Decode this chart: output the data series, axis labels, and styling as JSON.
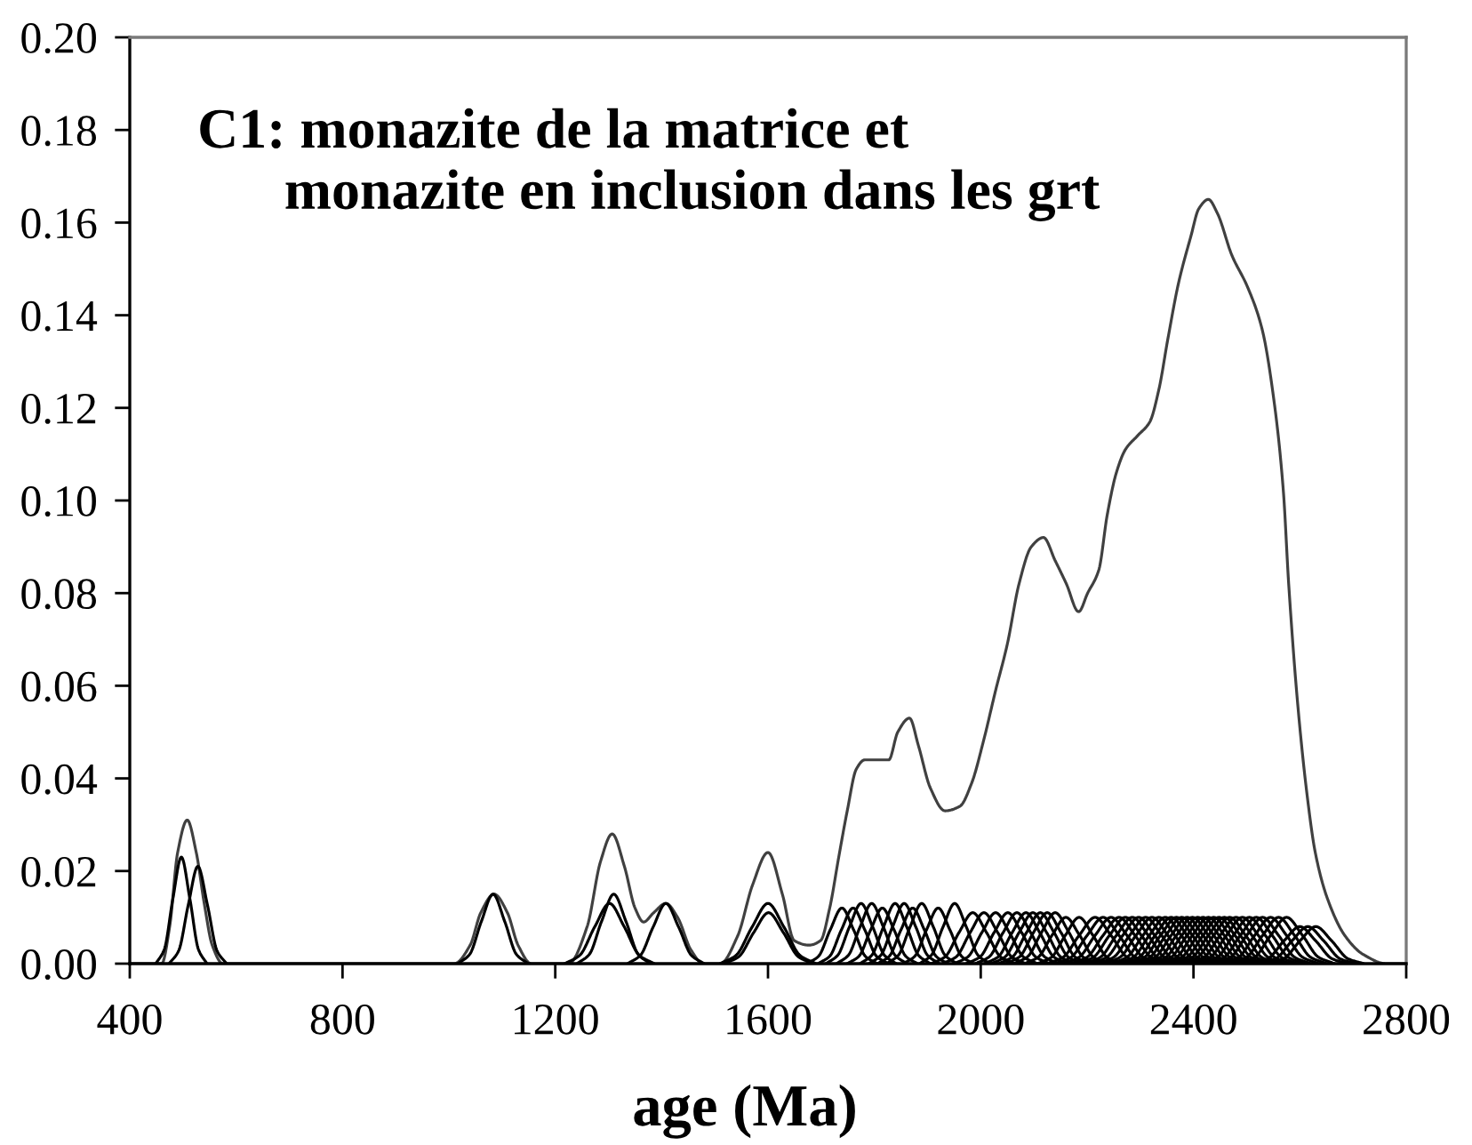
{
  "chart_data": {
    "type": "line",
    "title": "C1: monazite de la matrice et\nmonazite en inclusion dans les grt",
    "xlabel": "age (Ma)",
    "xlim": [
      400,
      2800
    ],
    "ylim": [
      0,
      0.2
    ],
    "xticks": [
      400,
      800,
      1200,
      1600,
      2000,
      2400,
      2800
    ],
    "yticks": [
      {
        "value": 0,
        "label": "0.00"
      },
      {
        "value": 0.02,
        "label": "0.02"
      },
      {
        "value": 0.04,
        "label": "0.04"
      },
      {
        "value": 0.06,
        "label": "0.06"
      },
      {
        "value": 0.08,
        "label": "0.08"
      },
      {
        "value": 0.1,
        "label": "0.10"
      },
      {
        "value": 0.12,
        "label": "0.12"
      },
      {
        "value": 0.14,
        "label": "0.14"
      },
      {
        "value": 0.16,
        "label": "0.16"
      },
      {
        "value": 0.18,
        "label": "0.18"
      },
      {
        "value": 0.2,
        "label": "0.20"
      }
    ],
    "series": [
      {
        "color": "#404040",
        "x": [
          400,
          460,
          475,
          490,
          508,
          525,
          540,
          555,
          575,
          1010,
          1040,
          1060,
          1085,
          1110,
          1130,
          1155,
          1225,
          1260,
          1285,
          1307,
          1330,
          1350,
          1366,
          1385,
          1408,
          1430,
          1455,
          1478,
          1510,
          1543,
          1571,
          1600,
          1627,
          1649,
          1677,
          1699,
          1716,
          1733,
          1749,
          1766,
          1782,
          1810,
          1827,
          1844,
          1866,
          1883,
          1905,
          1933,
          1961,
          1983,
          2005,
          2028,
          2050,
          2072,
          2095,
          2118,
          2140,
          2161,
          2184,
          2201,
          2222,
          2238,
          2255,
          2272,
          2295,
          2318,
          2335,
          2352,
          2372,
          2395,
          2410,
          2428,
          2445,
          2472,
          2502,
          2529,
          2552,
          2569,
          2579,
          2596,
          2613,
          2629,
          2652,
          2685,
          2719,
          2763,
          2800
        ],
        "values": [
          0,
          0,
          0.008,
          0.024,
          0.031,
          0.024,
          0.013,
          0.004,
          0,
          0,
          0.004,
          0.011,
          0.015,
          0.011,
          0.004,
          0,
          0,
          0.008,
          0.022,
          0.028,
          0.021,
          0.012,
          0.009,
          0.011,
          0.013,
          0.01,
          0.003,
          0,
          0,
          0.006,
          0.017,
          0.024,
          0.015,
          0.005,
          0.004,
          0.005,
          0.012,
          0.023,
          0.033,
          0.042,
          0.044,
          0.044,
          0.044,
          0.05,
          0.053,
          0.047,
          0.038,
          0.033,
          0.034,
          0.039,
          0.048,
          0.059,
          0.069,
          0.082,
          0.09,
          0.092,
          0.087,
          0.082,
          0.076,
          0.08,
          0.085,
          0.097,
          0.106,
          0.111,
          0.114,
          0.117,
          0.124,
          0.135,
          0.147,
          0.157,
          0.163,
          0.165,
          0.162,
          0.153,
          0.146,
          0.137,
          0.121,
          0.102,
          0.082,
          0.056,
          0.037,
          0.024,
          0.014,
          0.006,
          0.002,
          0,
          0
        ]
      },
      {
        "color": "#000000",
        "x": [
          449,
          465,
          481,
          497,
          513,
          529,
          545
        ],
        "values": [
          0,
          0.0031,
          0.014,
          0.023,
          0.014,
          0.0031,
          0
        ]
      },
      {
        "color": "#000000",
        "x": [
          474,
          492,
          510,
          528,
          546,
          564,
          582
        ],
        "values": [
          0,
          0.0028,
          0.0127,
          0.021,
          0.0127,
          0.0028,
          0
        ]
      },
      {
        "color": "#000000",
        "x": [
          1017,
          1039,
          1061,
          1083,
          1105,
          1127,
          1149
        ],
        "values": [
          0,
          0.002,
          0.0091,
          0.015,
          0.0091,
          0.002,
          0
        ]
      },
      {
        "color": "#000000",
        "x": [
          1218,
          1246,
          1274,
          1302,
          1330,
          1358,
          1386
        ],
        "values": [
          0,
          0.0018,
          0.0079,
          0.013,
          0.0079,
          0.0018,
          0
        ]
      },
      {
        "color": "#000000",
        "x": [
          1241,
          1264,
          1287,
          1310,
          1333,
          1356,
          1379
        ],
        "values": [
          0,
          0.002,
          0.0091,
          0.015,
          0.0091,
          0.002,
          0
        ]
      },
      {
        "color": "#000000",
        "x": [
          1336,
          1360,
          1384,
          1408,
          1432,
          1456,
          1480
        ],
        "values": [
          0,
          0.0018,
          0.0079,
          0.013,
          0.0079,
          0.0018,
          0
        ]
      },
      {
        "color": "#000000",
        "x": [
          1510,
          1540,
          1570,
          1600,
          1630,
          1660,
          1690
        ],
        "values": [
          0,
          0.0018,
          0.0079,
          0.013,
          0.0079,
          0.0018,
          0
        ]
      },
      {
        "color": "#000000",
        "x": [
          1517,
          1545,
          1573,
          1601,
          1629,
          1657,
          1685
        ],
        "values": [
          0,
          0.0015,
          0.0067,
          0.011,
          0.0067,
          0.0015,
          0
        ]
      },
      {
        "color": "#000000",
        "x": [
          1673,
          1695,
          1717,
          1739,
          1761,
          1783,
          1805
        ],
        "values": [
          0,
          0.0016,
          0.0073,
          0.012,
          0.0073,
          0.0016,
          0
        ]
      },
      {
        "color": "#000000",
        "x": [
          1694,
          1716,
          1738,
          1760,
          1782,
          1804,
          1826
        ],
        "values": [
          0,
          0.0016,
          0.0073,
          0.012,
          0.0073,
          0.0016,
          0
        ]
      },
      {
        "color": "#000000",
        "x": [
          1709,
          1731,
          1753,
          1775,
          1797,
          1819,
          1841
        ],
        "values": [
          0,
          0.0018,
          0.0079,
          0.013,
          0.0079,
          0.0018,
          0
        ]
      },
      {
        "color": "#000000",
        "x": [
          1729,
          1751,
          1773,
          1795,
          1817,
          1839,
          1861
        ],
        "values": [
          0,
          0.0018,
          0.0079,
          0.013,
          0.0079,
          0.0018,
          0
        ]
      },
      {
        "color": "#000000",
        "x": [
          1749,
          1771,
          1793,
          1815,
          1837,
          1859,
          1881
        ],
        "values": [
          0,
          0.0016,
          0.0073,
          0.012,
          0.0073,
          0.0016,
          0
        ]
      },
      {
        "color": "#000000",
        "x": [
          1773,
          1795,
          1817,
          1839,
          1861,
          1883,
          1905
        ],
        "values": [
          0,
          0.0018,
          0.0079,
          0.013,
          0.0079,
          0.0018,
          0
        ]
      },
      {
        "color": "#000000",
        "x": [
          1790,
          1812,
          1834,
          1856,
          1878,
          1900,
          1922
        ],
        "values": [
          0,
          0.0018,
          0.0079,
          0.013,
          0.0079,
          0.0018,
          0
        ]
      },
      {
        "color": "#000000",
        "x": [
          1806,
          1828,
          1850,
          1872,
          1894,
          1916,
          1938
        ],
        "values": [
          0,
          0.0016,
          0.0073,
          0.012,
          0.0073,
          0.0016,
          0
        ]
      },
      {
        "color": "#000000",
        "x": [
          1823,
          1845,
          1867,
          1889,
          1911,
          1933,
          1955
        ],
        "values": [
          0,
          0.0018,
          0.0079,
          0.013,
          0.0079,
          0.0018,
          0
        ]
      },
      {
        "color": "#000000",
        "x": [
          1854,
          1876,
          1898,
          1920,
          1942,
          1964,
          1986
        ],
        "values": [
          0,
          0.0016,
          0.0073,
          0.012,
          0.0073,
          0.0016,
          0
        ]
      },
      {
        "color": "#000000",
        "x": [
          1885,
          1907,
          1929,
          1951,
          1973,
          1995,
          2017
        ],
        "values": [
          0,
          0.0018,
          0.0079,
          0.013,
          0.0079,
          0.0018,
          0
        ]
      },
      {
        "color": "#000000",
        "x": [
          1907,
          1933,
          1959,
          1985,
          2011,
          2037,
          2063
        ],
        "values": [
          0,
          0.0015,
          0.0067,
          0.011,
          0.0067,
          0.0015,
          0
        ]
      },
      {
        "color": "#000000",
        "x": [
          1928,
          1954,
          1980,
          2006,
          2032,
          2058,
          2084
        ],
        "values": [
          0,
          0.0015,
          0.0067,
          0.011,
          0.0067,
          0.0015,
          0
        ]
      },
      {
        "color": "#000000",
        "x": [
          1950,
          1976,
          2002,
          2028,
          2054,
          2080,
          2106
        ],
        "values": [
          0,
          0.0015,
          0.0067,
          0.011,
          0.0067,
          0.0015,
          0
        ]
      },
      {
        "color": "#000000",
        "x": [
          1973,
          1999,
          2025,
          2051,
          2077,
          2103,
          2129
        ],
        "values": [
          0,
          0.0015,
          0.0067,
          0.011,
          0.0067,
          0.0015,
          0
        ]
      },
      {
        "color": "#000000",
        "x": [
          1990,
          2016,
          2042,
          2068,
          2094,
          2120,
          2146
        ],
        "values": [
          0,
          0.0015,
          0.0067,
          0.011,
          0.0067,
          0.0015,
          0
        ]
      },
      {
        "color": "#000000",
        "x": [
          2007,
          2033,
          2059,
          2085,
          2111,
          2137,
          2163
        ],
        "values": [
          0,
          0.0015,
          0.0067,
          0.011,
          0.0067,
          0.0015,
          0
        ]
      },
      {
        "color": "#000000",
        "x": [
          2020,
          2046,
          2072,
          2098,
          2124,
          2150,
          2176
        ],
        "values": [
          0,
          0.0015,
          0.0067,
          0.011,
          0.0067,
          0.0015,
          0
        ]
      },
      {
        "color": "#000000",
        "x": [
          2034,
          2060,
          2086,
          2112,
          2138,
          2164,
          2190
        ],
        "values": [
          0,
          0.0015,
          0.0067,
          0.011,
          0.0067,
          0.0015,
          0
        ]
      },
      {
        "color": "#000000",
        "x": [
          2047,
          2073,
          2099,
          2125,
          2151,
          2177,
          2203
        ],
        "values": [
          0,
          0.0015,
          0.0067,
          0.011,
          0.0067,
          0.0015,
          0
        ]
      },
      {
        "color": "#000000",
        "x": [
          2062,
          2088,
          2114,
          2140,
          2166,
          2192,
          2218
        ],
        "values": [
          0,
          0.0015,
          0.0067,
          0.011,
          0.0067,
          0.0015,
          0
        ]
      },
      {
        "color": "#000000",
        "x": [
          2082,
          2108,
          2134,
          2160,
          2186,
          2212,
          2238
        ],
        "values": [
          0,
          0.0014,
          0.0061,
          0.01,
          0.0061,
          0.0014,
          0
        ]
      },
      {
        "color": "#000000",
        "x": [
          2107,
          2133,
          2159,
          2185,
          2211,
          2237,
          2263
        ],
        "values": [
          0,
          0.0014,
          0.0061,
          0.01,
          0.0061,
          0.0014,
          0
        ]
      },
      {
        "color": "#000000",
        "x": [
          2125,
          2155,
          2185,
          2215,
          2245,
          2275,
          2305
        ],
        "values": [
          0,
          0.0014,
          0.0061,
          0.01,
          0.0061,
          0.0014,
          0
        ]
      },
      {
        "color": "#000000",
        "x": [
          2140,
          2170,
          2200,
          2230,
          2260,
          2290,
          2320
        ],
        "values": [
          0,
          0.0014,
          0.0061,
          0.01,
          0.0061,
          0.0014,
          0
        ]
      },
      {
        "color": "#000000",
        "x": [
          2155,
          2185,
          2215,
          2245,
          2275,
          2305,
          2335
        ],
        "values": [
          0,
          0.0014,
          0.0061,
          0.01,
          0.0061,
          0.0014,
          0
        ]
      },
      {
        "color": "#000000",
        "x": [
          2170,
          2200,
          2230,
          2260,
          2290,
          2320,
          2350
        ],
        "values": [
          0,
          0.0014,
          0.0061,
          0.01,
          0.0061,
          0.0014,
          0
        ]
      },
      {
        "color": "#000000",
        "x": [
          2182,
          2212,
          2242,
          2272,
          2302,
          2332,
          2362
        ],
        "values": [
          0,
          0.0014,
          0.0061,
          0.01,
          0.0061,
          0.0014,
          0
        ]
      },
      {
        "color": "#000000",
        "x": [
          2195,
          2225,
          2255,
          2285,
          2315,
          2345,
          2375
        ],
        "values": [
          0,
          0.0014,
          0.0061,
          0.01,
          0.0061,
          0.0014,
          0
        ]
      },
      {
        "color": "#000000",
        "x": [
          2207,
          2237,
          2267,
          2297,
          2327,
          2357,
          2387
        ],
        "values": [
          0,
          0.0014,
          0.0061,
          0.01,
          0.0061,
          0.0014,
          0
        ]
      },
      {
        "color": "#000000",
        "x": [
          2220,
          2250,
          2280,
          2310,
          2340,
          2370,
          2400
        ],
        "values": [
          0,
          0.0014,
          0.0061,
          0.01,
          0.0061,
          0.0014,
          0
        ]
      },
      {
        "color": "#000000",
        "x": [
          2232,
          2262,
          2292,
          2322,
          2352,
          2382,
          2412
        ],
        "values": [
          0,
          0.0014,
          0.0061,
          0.01,
          0.0061,
          0.0014,
          0
        ]
      },
      {
        "color": "#000000",
        "x": [
          2245,
          2275,
          2305,
          2335,
          2365,
          2395,
          2425
        ],
        "values": [
          0,
          0.0014,
          0.0061,
          0.01,
          0.0061,
          0.0014,
          0
        ]
      },
      {
        "color": "#000000",
        "x": [
          2257,
          2287,
          2317,
          2347,
          2377,
          2407,
          2437
        ],
        "values": [
          0,
          0.0014,
          0.0061,
          0.01,
          0.0061,
          0.0014,
          0
        ]
      },
      {
        "color": "#000000",
        "x": [
          2268,
          2298,
          2328,
          2358,
          2388,
          2418,
          2448
        ],
        "values": [
          0,
          0.0014,
          0.0061,
          0.01,
          0.0061,
          0.0014,
          0
        ]
      },
      {
        "color": "#000000",
        "x": [
          2278,
          2308,
          2338,
          2368,
          2398,
          2428,
          2458
        ],
        "values": [
          0,
          0.0014,
          0.0061,
          0.01,
          0.0061,
          0.0014,
          0
        ]
      },
      {
        "color": "#000000",
        "x": [
          2288,
          2318,
          2348,
          2378,
          2408,
          2438,
          2468
        ],
        "values": [
          0,
          0.0014,
          0.0061,
          0.01,
          0.0061,
          0.0014,
          0
        ]
      },
      {
        "color": "#000000",
        "x": [
          2298,
          2328,
          2358,
          2388,
          2418,
          2448,
          2478
        ],
        "values": [
          0,
          0.0014,
          0.0061,
          0.01,
          0.0061,
          0.0014,
          0
        ]
      },
      {
        "color": "#000000",
        "x": [
          2308,
          2338,
          2368,
          2398,
          2428,
          2458,
          2488
        ],
        "values": [
          0,
          0.0014,
          0.0061,
          0.01,
          0.0061,
          0.0014,
          0
        ]
      },
      {
        "color": "#000000",
        "x": [
          2318,
          2348,
          2378,
          2408,
          2438,
          2468,
          2498
        ],
        "values": [
          0,
          0.0014,
          0.0061,
          0.01,
          0.0061,
          0.0014,
          0
        ]
      },
      {
        "color": "#000000",
        "x": [
          2328,
          2358,
          2388,
          2418,
          2448,
          2478,
          2508
        ],
        "values": [
          0,
          0.0014,
          0.0061,
          0.01,
          0.0061,
          0.0014,
          0
        ]
      },
      {
        "color": "#000000",
        "x": [
          2338,
          2368,
          2398,
          2428,
          2458,
          2488,
          2518
        ],
        "values": [
          0,
          0.0014,
          0.0061,
          0.01,
          0.0061,
          0.0014,
          0
        ]
      },
      {
        "color": "#000000",
        "x": [
          2348,
          2378,
          2408,
          2438,
          2468,
          2498,
          2528
        ],
        "values": [
          0,
          0.0014,
          0.0061,
          0.01,
          0.0061,
          0.0014,
          0
        ]
      },
      {
        "color": "#000000",
        "x": [
          2358,
          2388,
          2418,
          2448,
          2478,
          2508,
          2538
        ],
        "values": [
          0,
          0.0014,
          0.0061,
          0.01,
          0.0061,
          0.0014,
          0
        ]
      },
      {
        "color": "#000000",
        "x": [
          2368,
          2398,
          2428,
          2458,
          2488,
          2518,
          2548
        ],
        "values": [
          0,
          0.0014,
          0.0061,
          0.01,
          0.0061,
          0.0014,
          0
        ]
      },
      {
        "color": "#000000",
        "x": [
          2378,
          2408,
          2438,
          2468,
          2498,
          2528,
          2558
        ],
        "values": [
          0,
          0.0014,
          0.0061,
          0.01,
          0.0061,
          0.0014,
          0
        ]
      },
      {
        "color": "#000000",
        "x": [
          2390,
          2420,
          2450,
          2480,
          2510,
          2540,
          2570
        ],
        "values": [
          0,
          0.0014,
          0.0061,
          0.01,
          0.0061,
          0.0014,
          0
        ]
      },
      {
        "color": "#000000",
        "x": [
          2402,
          2432,
          2462,
          2492,
          2522,
          2552,
          2582
        ],
        "values": [
          0,
          0.0014,
          0.0061,
          0.01,
          0.0061,
          0.0014,
          0
        ]
      },
      {
        "color": "#000000",
        "x": [
          2415,
          2445,
          2475,
          2505,
          2535,
          2565,
          2595
        ],
        "values": [
          0,
          0.0014,
          0.0061,
          0.01,
          0.0061,
          0.0014,
          0
        ]
      },
      {
        "color": "#000000",
        "x": [
          2428,
          2458,
          2488,
          2518,
          2548,
          2578,
          2608
        ],
        "values": [
          0,
          0.0014,
          0.0061,
          0.01,
          0.0061,
          0.0014,
          0
        ]
      },
      {
        "color": "#000000",
        "x": [
          2440,
          2470,
          2500,
          2530,
          2560,
          2590,
          2620
        ],
        "values": [
          0,
          0.0014,
          0.0061,
          0.01,
          0.0061,
          0.0014,
          0
        ]
      },
      {
        "color": "#000000",
        "x": [
          2455,
          2485,
          2515,
          2545,
          2575,
          2605,
          2635
        ],
        "values": [
          0,
          0.0014,
          0.0061,
          0.01,
          0.0061,
          0.0014,
          0
        ]
      },
      {
        "color": "#000000",
        "x": [
          2470,
          2500,
          2530,
          2560,
          2590,
          2620,
          2650
        ],
        "values": [
          0,
          0.0014,
          0.0061,
          0.01,
          0.0061,
          0.0014,
          0
        ]
      },
      {
        "color": "#000000",
        "x": [
          2485,
          2515,
          2545,
          2575,
          2605,
          2635,
          2665
        ],
        "values": [
          0,
          0.0014,
          0.0061,
          0.01,
          0.0061,
          0.0014,
          0
        ]
      },
      {
        "color": "#000000",
        "x": [
          2510,
          2540,
          2570,
          2600,
          2630,
          2660,
          2690
        ],
        "values": [
          0,
          0.0011,
          0.0049,
          0.008,
          0.0049,
          0.0011,
          0
        ]
      },
      {
        "color": "#000000",
        "x": [
          2525,
          2555,
          2585,
          2615,
          2645,
          2675,
          2705
        ],
        "values": [
          0,
          0.0011,
          0.0049,
          0.008,
          0.0049,
          0.0011,
          0
        ]
      },
      {
        "color": "#000000",
        "x": [
          2540,
          2570,
          2600,
          2630,
          2660,
          2690,
          2720
        ],
        "values": [
          0,
          0.0011,
          0.0049,
          0.008,
          0.0049,
          0.0011,
          0
        ]
      }
    ]
  }
}
